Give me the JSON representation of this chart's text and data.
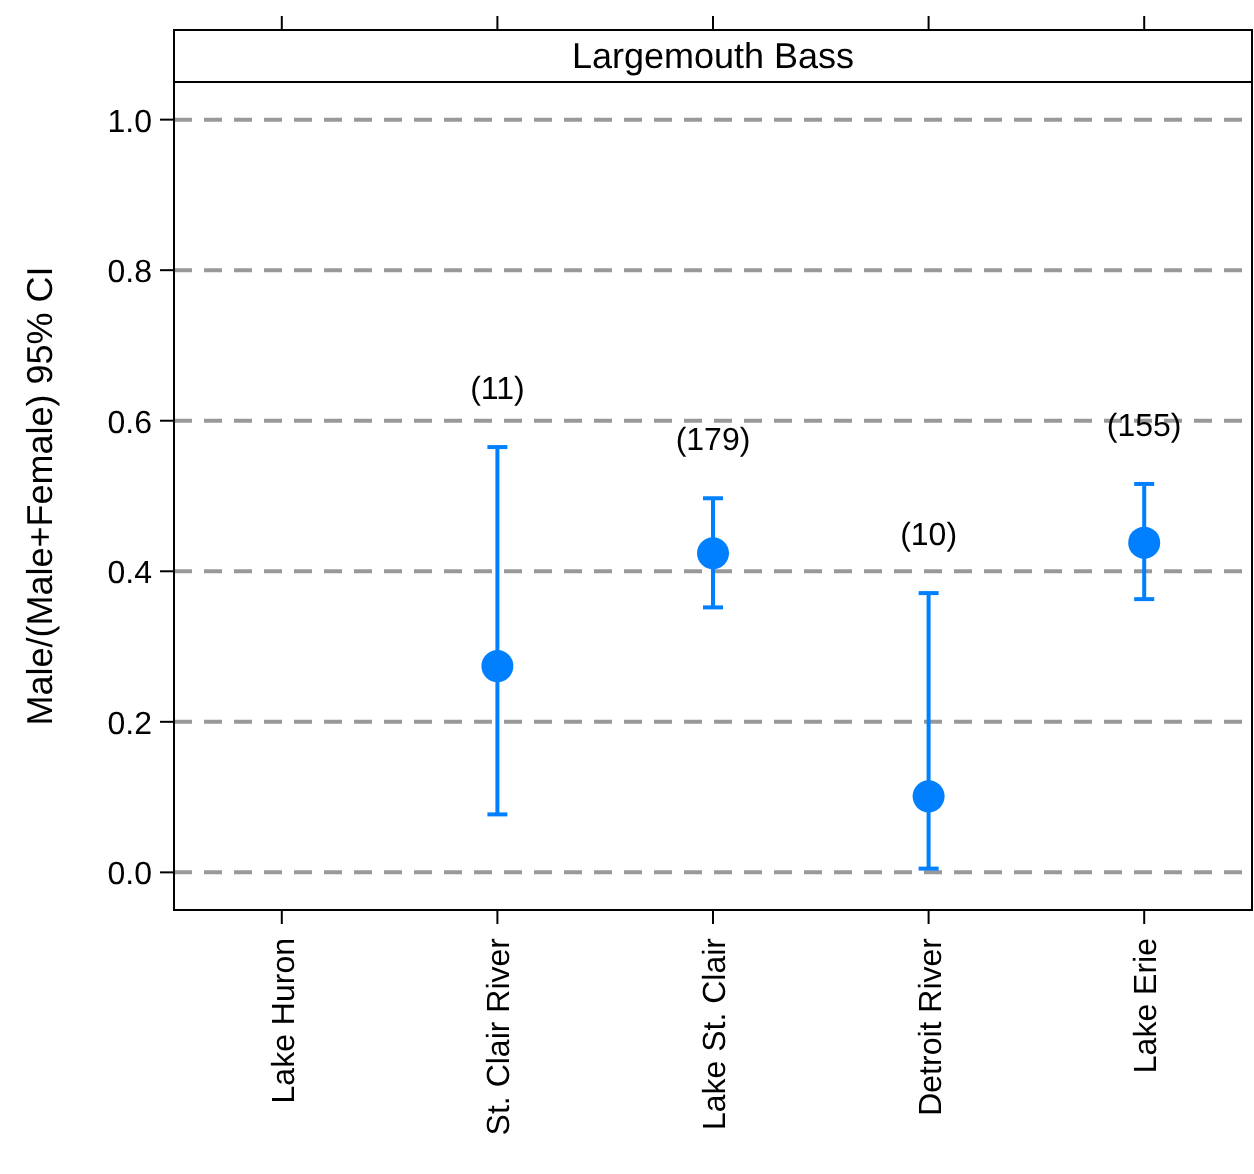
{
  "chart_data": {
    "type": "scatter",
    "title": "Largemouth Bass",
    "ylabel": "Male/(Male+Female) 95% CI",
    "categories": [
      "Lake Huron",
      "St. Clair River",
      "Lake St. Clair",
      "Detroit River",
      "Lake Erie"
    ],
    "series": [
      {
        "color": "#0080ff",
        "values": [
          null,
          0.274,
          0.424,
          0.101,
          0.438
        ],
        "errors": [
          null,
          [
            0.077,
            0.565
          ],
          [
            0.352,
            0.497
          ],
          [
            0.005,
            0.371
          ],
          [
            0.363,
            0.516
          ]
        ]
      }
    ],
    "ylim": [
      -0.05,
      1.05
    ],
    "yticks": [
      {
        "value": 0,
        "label": "0.0"
      },
      {
        "value": 0.2,
        "label": "0.2"
      },
      {
        "value": 0.4,
        "label": "0.4"
      },
      {
        "value": 0.6,
        "label": "0.6"
      },
      {
        "value": 0.8,
        "label": "0.8"
      },
      {
        "value": 1,
        "label": "1.0"
      }
    ],
    "grid": "y",
    "marker": "circle",
    "annotations": [
      "(11)",
      "(179)",
      "(10)",
      "(155)"
    ]
  }
}
